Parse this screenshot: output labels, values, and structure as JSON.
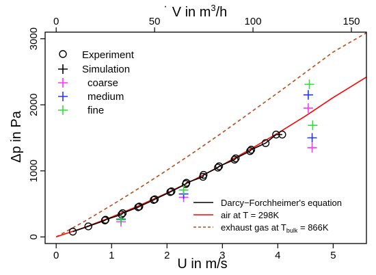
{
  "chart_data": {
    "type": "scatter",
    "xlabel": "U in m/s",
    "ylabel": "Δp in Pa",
    "x2label_prefix": "V",
    "x2label_suffix": " in m",
    "x2label_exp": "3",
    "x2label_tail": "/h",
    "xlim": [
      -0.2,
      5.6
    ],
    "ylim": [
      -100,
      3100
    ],
    "x2lim": [
      0,
      160
    ],
    "xticks": [
      0,
      1,
      2,
      3,
      4,
      5
    ],
    "x2ticks": [
      0,
      50,
      100,
      150
    ],
    "yticks": [
      0,
      1000,
      2000,
      3000
    ],
    "grid": false,
    "legend_top": {
      "experiment": "Experiment",
      "simulation": "Simulation",
      "coarse": "coarse",
      "medium": "medium",
      "fine": "fine"
    },
    "legend_bottom": {
      "darcy": "Darcy−Forchheimer's equation",
      "air": "air at T = 298K",
      "exhaust_prefix": "exhaust gas at T",
      "exhaust_sub": "bulk",
      "exhaust_suffix": " = 866K"
    },
    "colors": {
      "coarse": "#ff33ff",
      "medium": "#2233ff",
      "fine": "#33dd33",
      "air": "#ff0000",
      "exhaust": "#b84a1a",
      "darcy": "#000000"
    },
    "experiment": {
      "x": [
        0.3,
        0.58,
        0.88,
        0.89,
        1.18,
        1.2,
        1.48,
        1.5,
        1.76,
        1.78,
        2.06,
        2.08,
        2.34,
        2.35,
        2.65,
        2.66,
        2.92,
        2.94,
        3.22,
        3.24,
        3.5,
        3.52,
        3.78,
        3.97,
        4.08
      ],
      "y": [
        80,
        160,
        250,
        260,
        340,
        360,
        450,
        460,
        560,
        570,
        680,
        690,
        800,
        820,
        910,
        940,
        1050,
        1070,
        1170,
        1190,
        1300,
        1320,
        1420,
        1550,
        1550
      ]
    },
    "sim_coarse": {
      "x": [
        1.17,
        2.3,
        4.55,
        4.62
      ],
      "y": [
        230,
        600,
        1950,
        1350
      ]
    },
    "sim_medium": {
      "x": [
        1.17,
        2.3,
        4.55,
        4.62
      ],
      "y": [
        270,
        650,
        2150,
        1500
      ]
    },
    "sim_fine": {
      "x": [
        1.17,
        2.3,
        4.57,
        4.63
      ],
      "y": [
        260,
        710,
        2310,
        1690
      ]
    },
    "air_curve": {
      "x": [
        0,
        0.5,
        1,
        1.5,
        2,
        2.5,
        3,
        3.5,
        4,
        4.5,
        5,
        5.6
      ],
      "y": [
        0,
        140,
        300,
        475,
        665,
        870,
        1090,
        1325,
        1570,
        1830,
        2110,
        2420
      ]
    },
    "exhaust_curve": {
      "x": [
        0,
        0.5,
        1,
        1.5,
        2,
        2.5,
        3,
        3.5,
        4,
        4.5,
        5,
        5.6
      ],
      "y": [
        0,
        230,
        480,
        740,
        1010,
        1290,
        1580,
        1880,
        2180,
        2490,
        2800,
        3090
      ]
    }
  }
}
